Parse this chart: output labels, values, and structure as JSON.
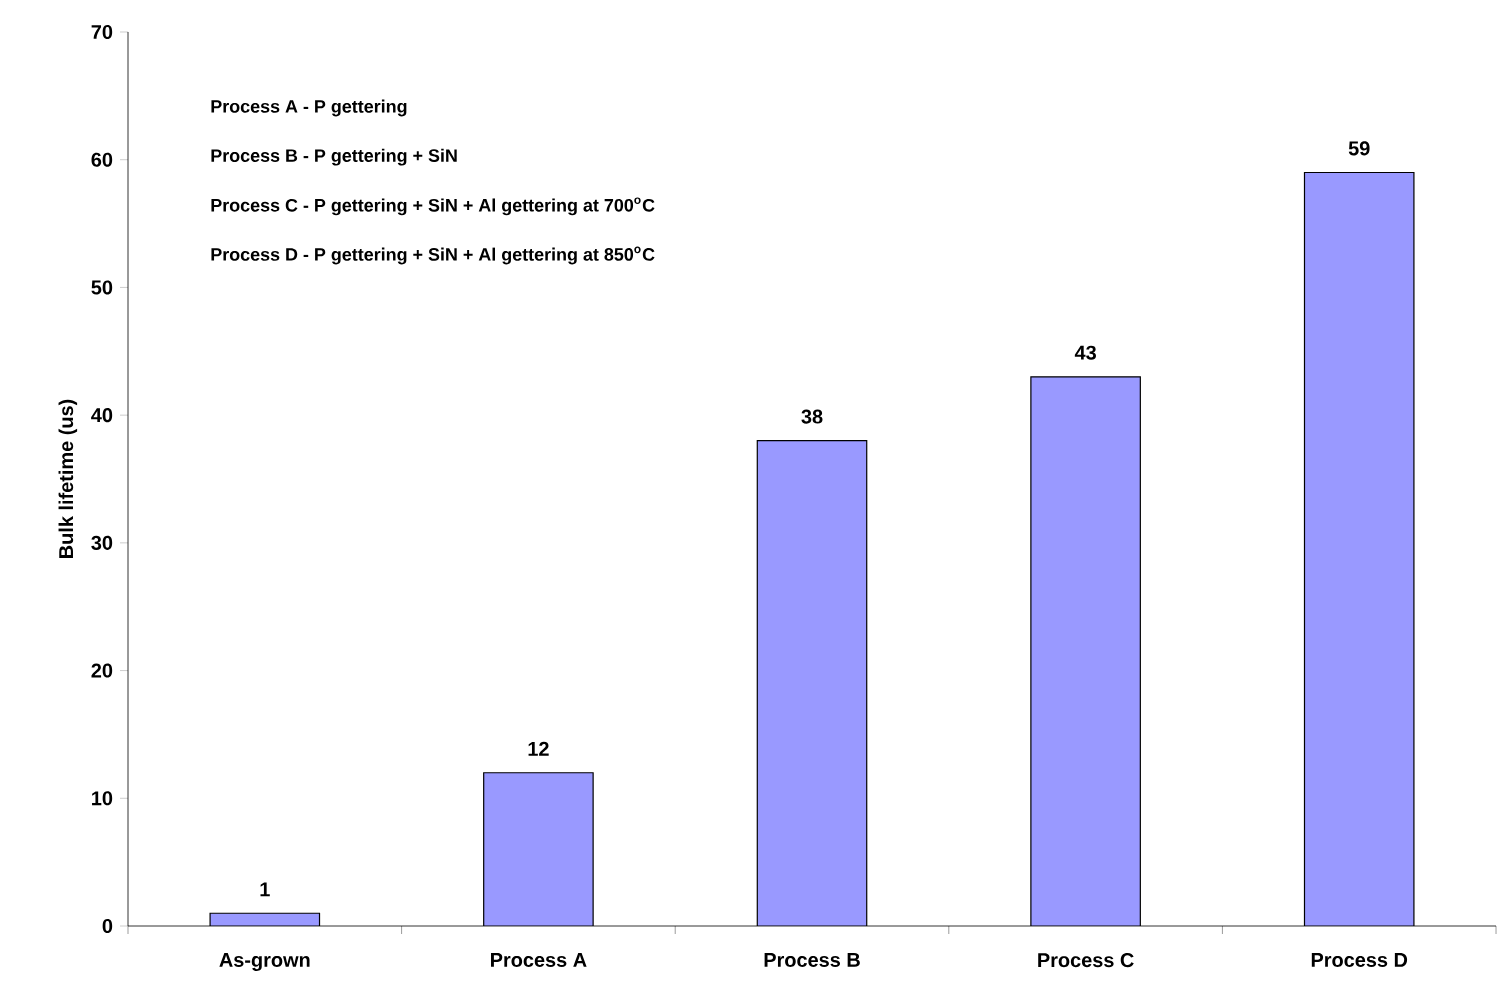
{
  "chart_data": {
    "type": "bar",
    "ylabel": "Bulk lifetime (us)",
    "categories": [
      "As-grown",
      "Process A",
      "Process B",
      "Process C",
      "Process D"
    ],
    "values": [
      1,
      12,
      38,
      43,
      59
    ],
    "color": "#9999ff",
    "ylim": [
      0,
      70
    ],
    "yticks": [
      0,
      10,
      20,
      30,
      40,
      50,
      60,
      70
    ],
    "data_labels": true,
    "annotations": [
      "Process A - P gettering",
      "Process B - P gettering + SiN",
      "Process C - P gettering + SiN + Al gettering at 700$^{o}$C",
      "Process D - P gettering + SiN + Al gettering at 850$^{o}$C"
    ]
  }
}
